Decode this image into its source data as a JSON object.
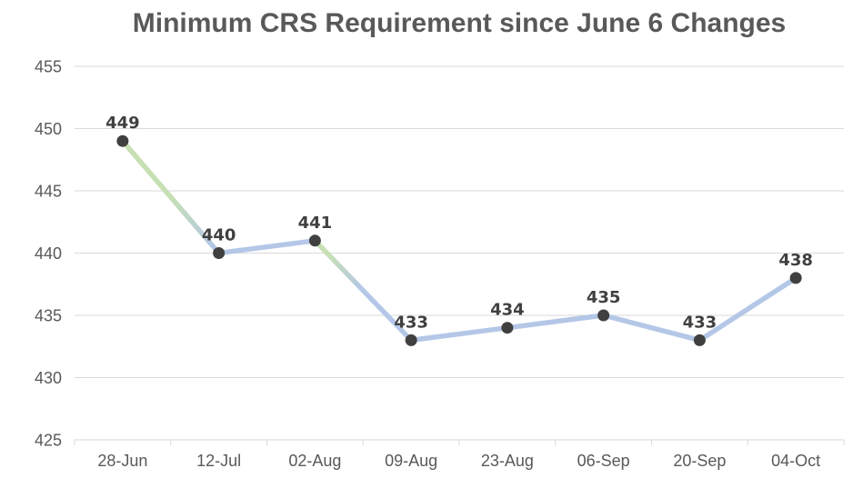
{
  "chart_data": {
    "type": "line",
    "title": "Minimum CRS Requirement since June 6 Changes",
    "categories": [
      "28-Jun",
      "12-Jul",
      "02-Aug",
      "09-Aug",
      "23-Aug",
      "06-Sep",
      "20-Sep",
      "04-Oct"
    ],
    "values": [
      449,
      440,
      441,
      433,
      434,
      435,
      433,
      438
    ],
    "xlabel": "",
    "ylabel": "",
    "ylim": [
      425,
      455
    ],
    "y_ticks": [
      455,
      450,
      445,
      440,
      435,
      430,
      425
    ],
    "grid": true,
    "legend": "none",
    "data_labels_shown": true,
    "colors": {
      "line_blue": "#B4C7E7",
      "line_green": "#C6E0B4",
      "marker": "#404040",
      "data_label": "#404040",
      "axis_label": "#595959",
      "title": "#595959",
      "gridline": "#D9D9D9"
    },
    "segment_styles": [
      {
        "type": "gradient",
        "stops": [
          [
            0,
            "#C6E0B4"
          ],
          [
            0.5,
            "#C6E0B4"
          ],
          [
            0.95,
            "#B4C7E7"
          ]
        ]
      },
      {
        "type": "solid",
        "color": "#B4C7E7"
      },
      {
        "type": "gradient",
        "stops": [
          [
            0,
            "#C6E0B4"
          ],
          [
            0.15,
            "#C6E0B4"
          ],
          [
            0.5,
            "#B4C7E7"
          ]
        ]
      },
      {
        "type": "solid",
        "color": "#B4C7E7"
      },
      {
        "type": "solid",
        "color": "#B4C7E7"
      },
      {
        "type": "solid",
        "color": "#B4C7E7"
      },
      {
        "type": "solid",
        "color": "#B4C7E7"
      }
    ]
  }
}
